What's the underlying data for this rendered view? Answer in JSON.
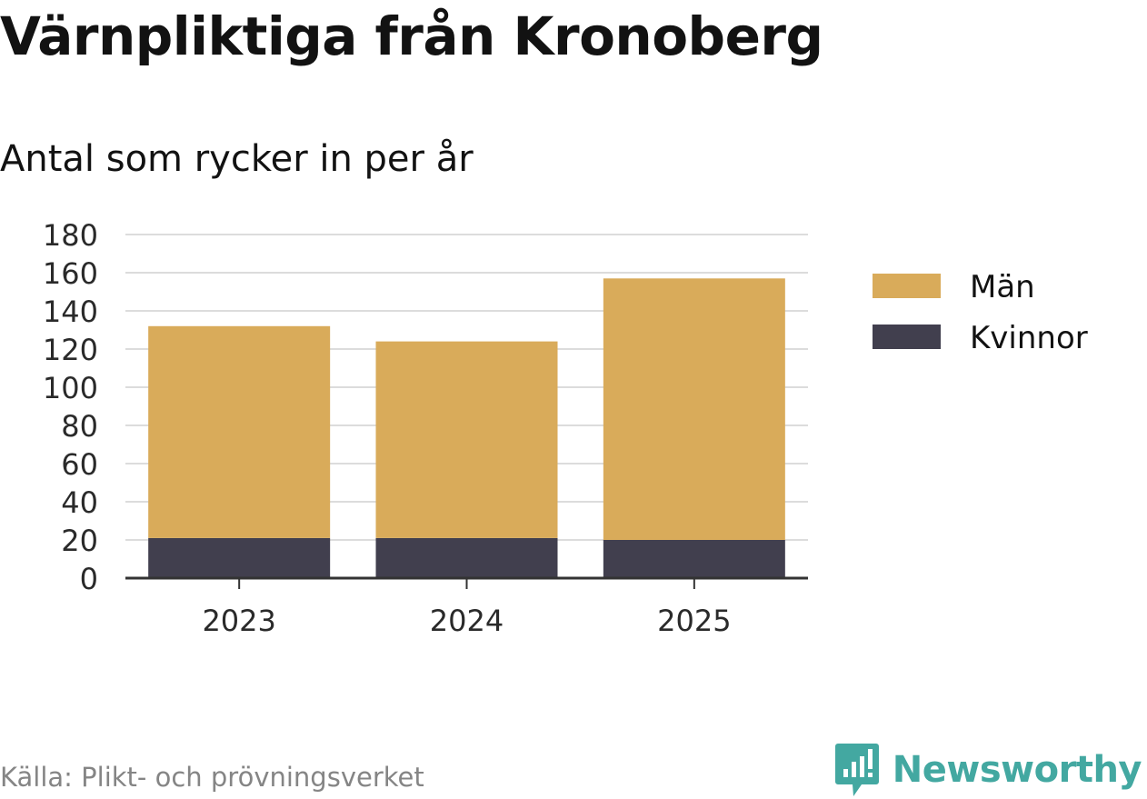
{
  "title": "Värnpliktiga från Kronoberg",
  "subtitle": "Antal som rycker in per år",
  "source": "Källa: Plikt- och prövningsverket",
  "brand": {
    "name": "Newsworthy",
    "icon": "newsworthy-logo-icon",
    "color": "#43a8a1"
  },
  "chart_data": {
    "type": "bar",
    "stacked": true,
    "categories": [
      "2023",
      "2024",
      "2025"
    ],
    "series": [
      {
        "name": "Kvinnor",
        "color": "#413f4e",
        "values": [
          21,
          21,
          20
        ]
      },
      {
        "name": "Män",
        "color": "#d9ab5a",
        "values": [
          111,
          103,
          137
        ]
      }
    ],
    "ylim": [
      0,
      180
    ],
    "yticks": [
      "0",
      "20",
      "40",
      "60",
      "80",
      "100",
      "120",
      "140",
      "160",
      "180"
    ],
    "grid": true,
    "legend": {
      "placement": "right",
      "order": [
        "Män",
        "Kvinnor"
      ]
    }
  }
}
